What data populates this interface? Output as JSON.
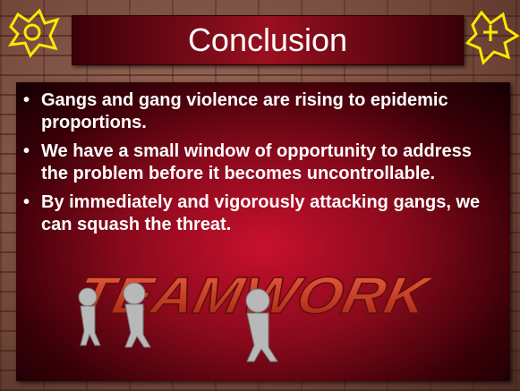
{
  "slide": {
    "title": "Conclusion",
    "bullets": [
      "Gangs and gang violence are rising to epidemic proportions.",
      "We have a small window of opportunity to address the problem before it becomes uncontrollable.",
      "By immediately and vigorously attacking gangs, we can squash the threat."
    ],
    "graphic": {
      "text": "TEAMWORK"
    }
  }
}
